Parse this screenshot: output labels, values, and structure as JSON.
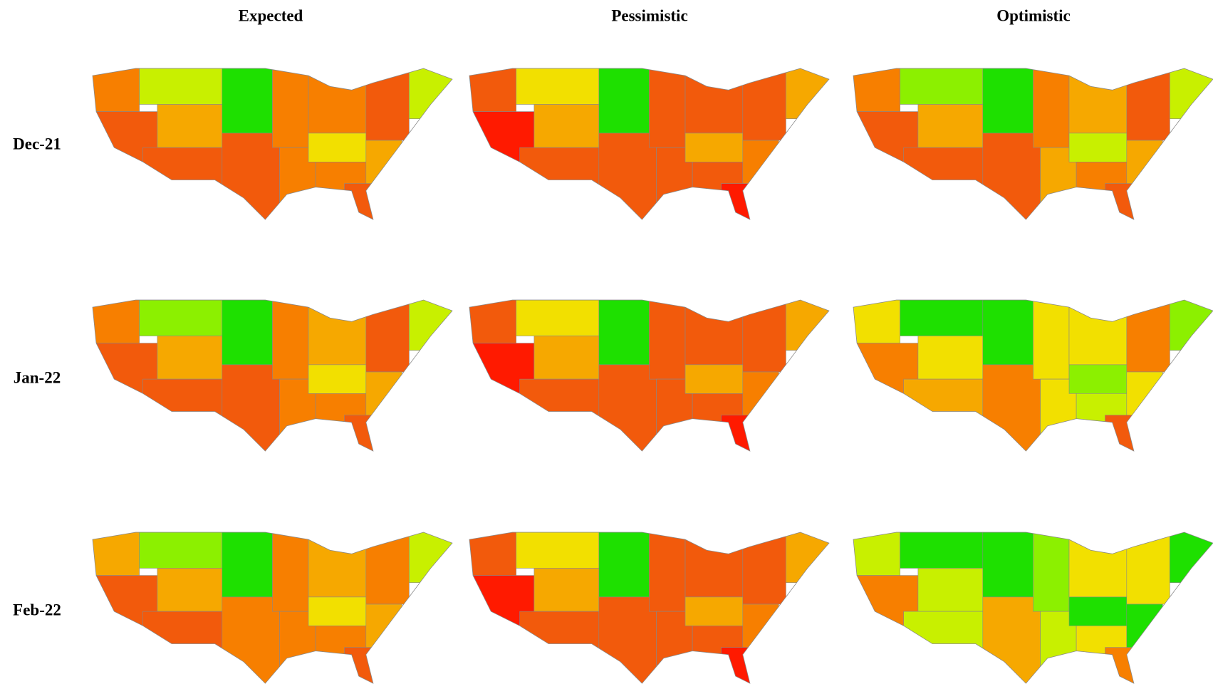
{
  "columns": [
    "Expected",
    "Pessimistic",
    "Optimistic"
  ],
  "rows": [
    {
      "label": "Dec-21",
      "maps": [
        [
          "#f77f00",
          "#f25a0c",
          "#c8f000",
          "#f6a800",
          "#f25a0c",
          "#1ee000",
          "#f25a0c",
          "#f77f00",
          "#f77f00",
          "#f77f00",
          "#f2e000",
          "#f77f00",
          "#f25a0c",
          "#c8f000",
          "#f6a800",
          "#f25a0c"
        ],
        [
          "#f25a0c",
          "#ff1a00",
          "#f2e000",
          "#f6a800",
          "#f25a0c",
          "#1ee000",
          "#f25a0c",
          "#f25a0c",
          "#f25a0c",
          "#f25a0c",
          "#f6a800",
          "#f25a0c",
          "#f25a0c",
          "#f6a800",
          "#f77f00",
          "#ff1a00"
        ],
        [
          "#f77f00",
          "#f25a0c",
          "#8cf000",
          "#f6a800",
          "#f25a0c",
          "#1ee000",
          "#f25a0c",
          "#f77f00",
          "#f6a800",
          "#f6a800",
          "#c8f000",
          "#f77f00",
          "#f25a0c",
          "#c8f000",
          "#f6a800",
          "#f25a0c"
        ]
      ]
    },
    {
      "label": "Jan-22",
      "maps": [
        [
          "#f77f00",
          "#f25a0c",
          "#8cf000",
          "#f6a800",
          "#f25a0c",
          "#1ee000",
          "#f25a0c",
          "#f77f00",
          "#f77f00",
          "#f6a800",
          "#f2e000",
          "#f77f00",
          "#f25a0c",
          "#c8f000",
          "#f6a800",
          "#f25a0c"
        ],
        [
          "#f25a0c",
          "#ff1a00",
          "#f2e000",
          "#f6a800",
          "#f25a0c",
          "#1ee000",
          "#f25a0c",
          "#f25a0c",
          "#f25a0c",
          "#f25a0c",
          "#f6a800",
          "#f25a0c",
          "#f25a0c",
          "#f6a800",
          "#f77f00",
          "#ff1a00"
        ],
        [
          "#f2e000",
          "#f77f00",
          "#1ee000",
          "#f2e000",
          "#f6a800",
          "#1ee000",
          "#f77f00",
          "#f2e000",
          "#f2e000",
          "#f2e000",
          "#8cf000",
          "#c8f000",
          "#f77f00",
          "#8cf000",
          "#f2e000",
          "#f25a0c"
        ]
      ]
    },
    {
      "label": "Feb-22",
      "maps": [
        [
          "#f6a800",
          "#f25a0c",
          "#8cf000",
          "#f6a800",
          "#f25a0c",
          "#1ee000",
          "#f77f00",
          "#f77f00",
          "#f77f00",
          "#f6a800",
          "#f2e000",
          "#f77f00",
          "#f77f00",
          "#c8f000",
          "#f6a800",
          "#f25a0c"
        ],
        [
          "#f25a0c",
          "#ff1a00",
          "#f2e000",
          "#f6a800",
          "#f25a0c",
          "#1ee000",
          "#f25a0c",
          "#f25a0c",
          "#f25a0c",
          "#f25a0c",
          "#f6a800",
          "#f25a0c",
          "#f25a0c",
          "#f6a800",
          "#f77f00",
          "#ff1a00"
        ],
        [
          "#c8f000",
          "#f77f00",
          "#1ee000",
          "#c8f000",
          "#c8f000",
          "#1ee000",
          "#f6a800",
          "#8cf000",
          "#c8f000",
          "#f2e000",
          "#1ee000",
          "#f2e000",
          "#f2e000",
          "#1ee000",
          "#1ee000",
          "#f77f00"
        ]
      ]
    }
  ]
}
